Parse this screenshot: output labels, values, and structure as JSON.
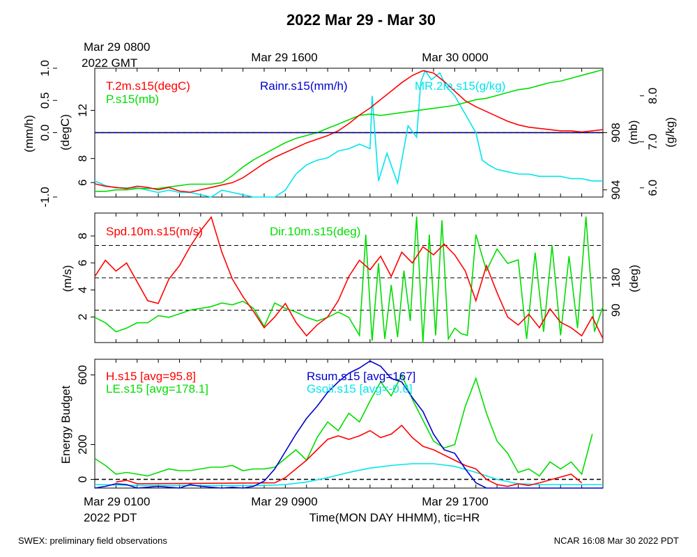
{
  "title": "2022 Mar 29 - Mar 30",
  "top_axis": {
    "first_line1": "Mar 29 0800",
    "first_line2": "2022 GMT",
    "ticks": [
      "Mar 29 1600",
      "Mar 30 0000"
    ]
  },
  "bottom_axis": {
    "first_line1": "Mar 29 0100",
    "first_line2": "2022 PDT",
    "ticks": [
      "Mar 29 0900",
      "Mar 29 1700"
    ],
    "xlabel": "Time(MON DAY HHMM), tic=HR"
  },
  "footer": {
    "left": "SWEX: preliminary field observations",
    "right": "NCAR 16:08 Mar 30 2022 PDT"
  },
  "colors": {
    "red": "#ff0000",
    "green": "#00dd00",
    "blue": "#0000cc",
    "cyan": "#00e5ee",
    "black": "#000000"
  },
  "chart_data": [
    {
      "type": "line",
      "panel": "top",
      "x_unit": "hours since Mar 29 0100 PDT",
      "xlim": [
        0,
        24
      ],
      "axes": {
        "rain": {
          "label": "(mm/h)",
          "lim": [
            -1.0,
            1.0
          ],
          "ticks": [
            "-1.0",
            "0.0",
            "0.5",
            "1.0"
          ],
          "tick_values": [
            -1.0,
            0.0,
            0.5,
            1.0
          ]
        },
        "temp": {
          "label": "(degC)",
          "lim": [
            4.8,
            15.5
          ],
          "ticks": [
            "6",
            "8",
            "12"
          ],
          "tick_values": [
            6,
            8,
            12
          ]
        },
        "pres": {
          "label": "(mb)",
          "lim": [
            903.5,
            912.5
          ],
          "ticks": [
            "904",
            "908"
          ],
          "tick_values": [
            904,
            908
          ]
        },
        "mr": {
          "label": "(g/kg)",
          "lim": [
            5.8,
            8.6
          ],
          "ticks": [
            "6.0",
            "7.0",
            "8.0"
          ],
          "tick_values": [
            6.0,
            7.0,
            8.0
          ]
        }
      },
      "series": [
        {
          "name": "T.2m.s15(degC)",
          "color": "red",
          "axis": "temp",
          "x": [
            0,
            0.5,
            1,
            1.5,
            2,
            2.5,
            3,
            3.5,
            4,
            4.5,
            5,
            5.5,
            6,
            6.5,
            7,
            7.5,
            8,
            8.5,
            9,
            9.5,
            10,
            10.5,
            11,
            11.5,
            12,
            12.5,
            13,
            13.5,
            14,
            14.5,
            15,
            15.5,
            16,
            16.5,
            17,
            17.5,
            18,
            18.5,
            19,
            19.5,
            20,
            20.5,
            21,
            21.5,
            22,
            22.5,
            23,
            23.5,
            24
          ],
          "y": [
            5.9,
            5.7,
            5.6,
            5.5,
            5.7,
            5.6,
            5.4,
            5.6,
            5.3,
            5.2,
            5.4,
            5.6,
            5.8,
            6.0,
            6.4,
            7.0,
            7.6,
            8.1,
            8.5,
            8.9,
            9.3,
            9.6,
            9.9,
            10.3,
            10.9,
            11.6,
            12.2,
            12.9,
            13.6,
            14.3,
            14.9,
            15.3,
            15.1,
            14.4,
            13.6,
            12.8,
            12.3,
            11.9,
            11.5,
            11.1,
            10.8,
            10.6,
            10.5,
            10.4,
            10.3,
            10.3,
            10.2,
            10.3,
            10.4
          ]
        },
        {
          "name": "P.s15(mb)",
          "color": "green",
          "axis": "pres",
          "x": [
            0,
            0.5,
            1,
            1.5,
            2,
            2.5,
            3,
            3.5,
            4,
            4.5,
            5,
            5.5,
            6,
            6.5,
            7,
            7.5,
            8,
            8.5,
            9,
            9.5,
            10,
            10.5,
            11,
            11.5,
            12,
            12.5,
            13,
            13.5,
            14,
            14.5,
            15,
            15.5,
            16,
            16.5,
            17,
            17.5,
            18,
            18.5,
            19,
            19.5,
            20,
            20.5,
            21,
            21.5,
            22,
            22.5,
            23,
            23.5,
            24
          ],
          "y": [
            903.9,
            903.9,
            904.0,
            904.0,
            904.1,
            904.1,
            904.1,
            904.2,
            904.3,
            904.4,
            904.4,
            904.4,
            904.5,
            905.0,
            905.6,
            906.1,
            906.5,
            906.9,
            907.3,
            907.6,
            907.8,
            908.0,
            908.3,
            908.6,
            908.9,
            909.2,
            909.3,
            909.2,
            909.3,
            909.4,
            909.5,
            909.6,
            909.7,
            909.8,
            909.9,
            910.1,
            910.3,
            910.4,
            910.6,
            910.8,
            911.0,
            911.1,
            911.3,
            911.5,
            911.6,
            911.8,
            912.0,
            912.2,
            912.4
          ]
        },
        {
          "name": "Rainr.s15(mm/h)",
          "color": "blue",
          "axis": "rain",
          "x": [
            0,
            24
          ],
          "y": [
            0.0,
            0.0
          ]
        },
        {
          "name": "MR.2m.s15(g/kg)",
          "color": "cyan",
          "axis": "mr",
          "x": [
            0,
            0.5,
            1,
            1.5,
            2,
            2.5,
            3,
            3.5,
            4,
            4.5,
            5,
            5.5,
            6,
            6.5,
            7,
            7.5,
            8,
            8.5,
            9,
            9.5,
            10,
            10.5,
            11,
            11.5,
            12,
            12.5,
            13,
            13.1,
            13.4,
            13.8,
            14.3,
            14.8,
            15.2,
            15.4,
            15.6,
            15.9,
            16.3,
            16.6,
            17,
            17.5,
            18,
            18.3,
            18.6,
            19,
            19.5,
            20,
            20.5,
            21,
            21.5,
            22,
            22.5,
            23,
            23.5,
            24
          ],
          "y": [
            6.15,
            6.05,
            6.0,
            6.0,
            6.0,
            5.95,
            5.9,
            5.95,
            5.9,
            5.9,
            5.85,
            5.8,
            5.95,
            5.9,
            5.85,
            5.8,
            5.75,
            5.75,
            5.95,
            6.3,
            6.5,
            6.6,
            6.65,
            6.8,
            6.85,
            6.95,
            6.85,
            8.0,
            6.15,
            6.75,
            6.1,
            7.35,
            7.1,
            8.3,
            8.55,
            8.35,
            8.5,
            8.2,
            8.0,
            7.6,
            7.2,
            6.6,
            6.5,
            6.4,
            6.35,
            6.3,
            6.3,
            6.25,
            6.25,
            6.25,
            6.2,
            6.2,
            6.15,
            6.15
          ]
        }
      ]
    },
    {
      "type": "line",
      "panel": "middle",
      "x_unit": "hours since Mar 29 0100 PDT",
      "xlim": [
        0,
        24
      ],
      "axes": {
        "spd": {
          "label": "(m/s)",
          "lim": [
            0.1,
            9.7
          ],
          "ticks": [
            "2",
            "4",
            "6",
            "8"
          ],
          "tick_values": [
            2,
            4,
            6,
            8
          ]
        },
        "dir": {
          "label": "(deg)",
          "lim": [
            0,
            360
          ],
          "ticks": [
            "90",
            "180"
          ],
          "tick_values": [
            90,
            180
          ]
        }
      },
      "reference_lines_deg": [
        90,
        180,
        270
      ],
      "series": [
        {
          "name": "Spd.10m.s15(m/s)",
          "color": "red",
          "axis": "spd",
          "x": [
            0,
            0.5,
            1,
            1.5,
            2,
            2.5,
            3,
            3.5,
            4,
            4.5,
            5,
            5.5,
            6,
            6.5,
            7,
            7.5,
            8,
            8.5,
            9,
            9.5,
            10,
            10.5,
            11,
            11.5,
            12,
            12.5,
            13,
            13.5,
            14,
            14.5,
            15,
            15.5,
            16,
            16.5,
            17,
            17.5,
            18,
            18.5,
            19,
            19.5,
            20,
            20.5,
            21,
            21.5,
            22,
            22.5,
            23,
            23.5,
            24
          ],
          "y": [
            5.0,
            6.2,
            5.4,
            6.0,
            4.6,
            3.2,
            3.0,
            4.8,
            5.8,
            7.2,
            8.4,
            9.4,
            6.8,
            4.8,
            3.5,
            2.4,
            1.2,
            2.0,
            3.0,
            1.6,
            0.6,
            1.4,
            2.0,
            3.2,
            5.0,
            6.2,
            5.5,
            6.5,
            5.0,
            6.8,
            6.0,
            7.2,
            6.6,
            7.4,
            6.6,
            5.4,
            3.2,
            5.8,
            3.8,
            2.0,
            1.4,
            2.2,
            1.2,
            2.6,
            1.6,
            1.2,
            0.6,
            2.0,
            0.4
          ]
        },
        {
          "name": "Dir.10m.s15(deg)",
          "color": "green",
          "axis": "dir",
          "x": [
            0,
            0.5,
            1,
            1.5,
            2,
            2.5,
            3,
            3.5,
            4,
            4.5,
            5,
            5.5,
            6,
            6.5,
            7,
            7.5,
            8,
            8.5,
            9,
            9.5,
            10,
            10.5,
            11,
            11.5,
            12,
            12.5,
            12.8,
            13.1,
            13.4,
            13.7,
            14,
            14.3,
            14.6,
            14.9,
            15.2,
            15.5,
            15.8,
            16.1,
            16.4,
            16.7,
            17,
            17.3,
            17.6,
            18,
            18.5,
            19,
            19.5,
            20,
            20.4,
            20.8,
            21.2,
            21.6,
            22,
            22.4,
            22.8,
            23.2,
            23.6,
            24
          ],
          "y": [
            70,
            55,
            30,
            40,
            55,
            55,
            75,
            70,
            80,
            90,
            95,
            100,
            110,
            105,
            115,
            95,
            45,
            110,
            95,
            85,
            70,
            60,
            70,
            85,
            70,
            20,
            300,
            5,
            220,
            10,
            160,
            15,
            200,
            60,
            350,
            0,
            300,
            20,
            340,
            10,
            40,
            25,
            20,
            300,
            200,
            260,
            220,
            230,
            10,
            250,
            30,
            270,
            20,
            240,
            40,
            350,
            30,
            100
          ]
        }
      ]
    },
    {
      "type": "line",
      "panel": "bottom",
      "x_unit": "hours since Mar 29 0100 PDT",
      "xlim": [
        0,
        24
      ],
      "ylabel": "Energy Budget",
      "ylim": [
        -50,
        690
      ],
      "yticks": [
        "0",
        "200",
        "600"
      ],
      "ytick_values": [
        0,
        200,
        600
      ],
      "zero_line": 0,
      "series": [
        {
          "name": "H.s15 [avg=95.8]",
          "color": "red",
          "x": [
            1,
            1.5,
            2,
            8.5,
            9,
            9.5,
            10,
            10.5,
            11,
            11.5,
            12,
            12.5,
            13,
            13.5,
            14,
            14.5,
            15,
            15.5,
            16,
            16.5,
            17,
            17.5,
            18,
            18.5,
            19,
            19.5,
            20,
            20.5,
            21,
            22.5,
            23
          ],
          "y": [
            -15,
            -5,
            -25,
            -20,
            10,
            60,
            110,
            170,
            230,
            250,
            230,
            250,
            280,
            240,
            260,
            310,
            240,
            190,
            170,
            140,
            110,
            80,
            60,
            0,
            -30,
            -40,
            -25,
            -35,
            -20,
            30,
            -20
          ]
        },
        {
          "name": "LE.s15 [avg=178.1]",
          "color": "green",
          "x": [
            0,
            0.5,
            1,
            1.5,
            2,
            2.5,
            3,
            3.5,
            4,
            4.5,
            5,
            5.5,
            6,
            6.5,
            7,
            7.5,
            8,
            8.5,
            9,
            9.5,
            10,
            10.5,
            11,
            11.5,
            12,
            12.5,
            13,
            13.5,
            14,
            14.5,
            15,
            15.5,
            16,
            16.5,
            17,
            17.5,
            18,
            18.5,
            19,
            19.5,
            20,
            20.5,
            21,
            21.5,
            22,
            22.5,
            23,
            23.5,
            24
          ],
          "y": [
            120,
            80,
            30,
            40,
            30,
            20,
            40,
            60,
            50,
            50,
            60,
            70,
            70,
            80,
            50,
            60,
            60,
            70,
            120,
            170,
            110,
            240,
            330,
            280,
            380,
            330,
            450,
            560,
            480,
            600,
            460,
            340,
            220,
            180,
            200,
            420,
            580,
            380,
            220,
            150,
            40,
            60,
            20,
            100,
            60,
            100,
            30,
            260,
            null
          ]
        },
        {
          "name": "Rsum.s15 [avg=167]",
          "color": "blue",
          "x": [
            0,
            0.5,
            1,
            1.5,
            2,
            2.5,
            3,
            3.5,
            4,
            4.5,
            5,
            5.5,
            6,
            6.5,
            7,
            7.5,
            8,
            8.5,
            9,
            9.5,
            10,
            10.5,
            11,
            11.5,
            12,
            12.5,
            13,
            13.5,
            14,
            14.5,
            15,
            15.5,
            16,
            16.5,
            17,
            17.5,
            18,
            18.5,
            19,
            19.5,
            20,
            20.5,
            21,
            21.5,
            22,
            22.5,
            23,
            23.5,
            24
          ],
          "y": [
            -50,
            -40,
            -25,
            -30,
            -50,
            -45,
            -40,
            -45,
            -50,
            -30,
            -40,
            -45,
            -50,
            -45,
            -50,
            -40,
            -10,
            60,
            160,
            260,
            350,
            420,
            500,
            560,
            610,
            640,
            680,
            650,
            580,
            560,
            470,
            390,
            260,
            170,
            150,
            60,
            -20,
            -55,
            -55,
            -55,
            -55,
            -55,
            -55,
            -55,
            -55,
            -55,
            -55,
            -55,
            -55
          ]
        },
        {
          "name": "Gsoil.s15 [avg=-0.6]",
          "color": "cyan",
          "x": [
            0,
            1,
            2,
            3,
            4,
            5,
            6,
            7,
            8,
            9,
            10,
            11,
            12,
            13,
            14,
            15,
            16,
            17,
            18,
            19,
            20,
            21,
            22,
            23,
            24
          ],
          "y": [
            -30,
            -32,
            -35,
            -35,
            -35,
            -35,
            -35,
            -35,
            -35,
            -30,
            -15,
            10,
            40,
            65,
            80,
            90,
            90,
            75,
            40,
            0,
            -25,
            -30,
            -30,
            -30,
            -30
          ]
        }
      ]
    }
  ]
}
